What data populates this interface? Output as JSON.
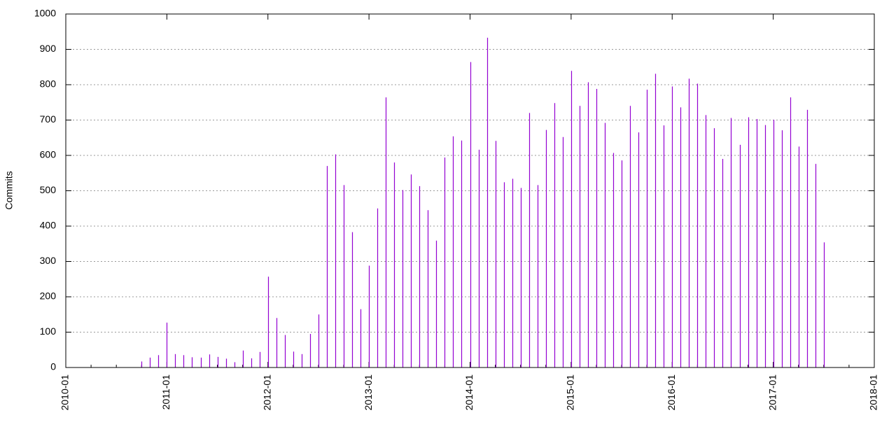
{
  "chart_data": {
    "type": "bar",
    "y_label": "Commits",
    "color": "#9400d3",
    "grid": true,
    "x": [
      "2010-10",
      "2010-11",
      "2010-12",
      "2011-01",
      "2011-02",
      "2011-03",
      "2011-04",
      "2011-05",
      "2011-06",
      "2011-07",
      "2011-08",
      "2011-09",
      "2011-10",
      "2011-11",
      "2011-12",
      "2012-01",
      "2012-02",
      "2012-03",
      "2012-04",
      "2012-05",
      "2012-06",
      "2012-07",
      "2012-08",
      "2012-09",
      "2012-10",
      "2012-11",
      "2012-12",
      "2013-01",
      "2013-02",
      "2013-03",
      "2013-04",
      "2013-05",
      "2013-06",
      "2013-07",
      "2013-08",
      "2013-09",
      "2013-10",
      "2013-11",
      "2013-12",
      "2014-01",
      "2014-02",
      "2014-03",
      "2014-04",
      "2014-05",
      "2014-06",
      "2014-07",
      "2014-08",
      "2014-09",
      "2014-10",
      "2014-11",
      "2014-12",
      "2015-01",
      "2015-02",
      "2015-03",
      "2015-04",
      "2015-05",
      "2015-06",
      "2015-07",
      "2015-08",
      "2015-09",
      "2015-10",
      "2015-11",
      "2015-12",
      "2016-01",
      "2016-02",
      "2016-03",
      "2016-04",
      "2016-05",
      "2016-06",
      "2016-07",
      "2016-08",
      "2016-09",
      "2016-10",
      "2016-11",
      "2016-12",
      "2017-01",
      "2017-02",
      "2017-03",
      "2017-04",
      "2017-05",
      "2017-06",
      "2017-07"
    ],
    "values": [
      17,
      28,
      35,
      127,
      38,
      35,
      29,
      28,
      37,
      30,
      25,
      15,
      48,
      26,
      44,
      257,
      140,
      92,
      45,
      38,
      95,
      150,
      570,
      603,
      516,
      383,
      165,
      288,
      450,
      764,
      580,
      502,
      546,
      513,
      445,
      359,
      594,
      654,
      642,
      864,
      616,
      933,
      641,
      524,
      534,
      508,
      720,
      516,
      672,
      748,
      652,
      839,
      740,
      807,
      788,
      692,
      607,
      586,
      740,
      665,
      786,
      831,
      685,
      795,
      736,
      817,
      803,
      714,
      677,
      590,
      706,
      630,
      708,
      703,
      686,
      701,
      671,
      764,
      625,
      729,
      576,
      354
    ],
    "xlim": [
      "2010-01",
      "2018-01"
    ],
    "xticks": [
      "2010-01",
      "2011-01",
      "2012-01",
      "2013-01",
      "2014-01",
      "2015-01",
      "2016-01",
      "2017-01",
      "2018-01"
    ],
    "ylim": [
      0,
      1000
    ],
    "yticks": [
      0,
      100,
      200,
      300,
      400,
      500,
      600,
      700,
      800,
      900,
      1000
    ]
  }
}
